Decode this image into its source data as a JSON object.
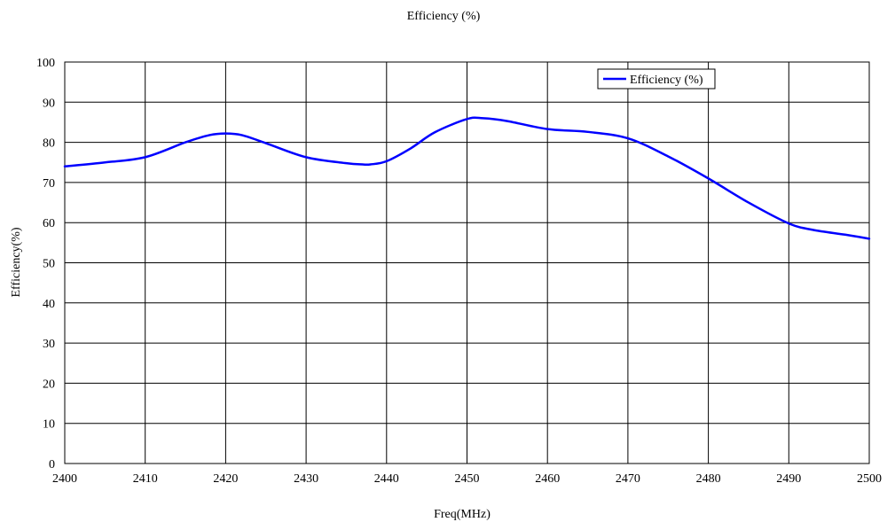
{
  "chart_data": {
    "type": "line",
    "title": "Efficiency (%)",
    "xlabel": "Freq(MHz)",
    "ylabel": "Efficiency(%)",
    "xlim": [
      2400,
      2500
    ],
    "ylim": [
      0,
      100
    ],
    "x_ticks": [
      2400,
      2410,
      2420,
      2430,
      2440,
      2450,
      2460,
      2470,
      2480,
      2490,
      2500
    ],
    "y_ticks": [
      0,
      10,
      20,
      30,
      40,
      50,
      60,
      70,
      80,
      90,
      100
    ],
    "grid": true,
    "legend_position": "top-right",
    "series": [
      {
        "name": "Efficiency (%)",
        "color": "#0000ff",
        "x": [
          2400,
          2405,
          2410,
          2415,
          2418,
          2420,
          2422,
          2425,
          2430,
          2435,
          2437,
          2438,
          2440,
          2443,
          2446,
          2450,
          2452,
          2455,
          2460,
          2465,
          2470,
          2475,
          2480,
          2485,
          2490,
          2493,
          2497,
          2500
        ],
        "y": [
          74,
          75,
          76.3,
          80,
          81.8,
          82.2,
          81.8,
          79.8,
          76.3,
          74.8,
          74.5,
          74.5,
          75.3,
          78.5,
          82.5,
          85.8,
          86.0,
          85.3,
          83.3,
          82.6,
          81.0,
          76.5,
          71.0,
          65.0,
          59.8,
          58.2,
          57.0,
          56.0
        ]
      }
    ]
  }
}
